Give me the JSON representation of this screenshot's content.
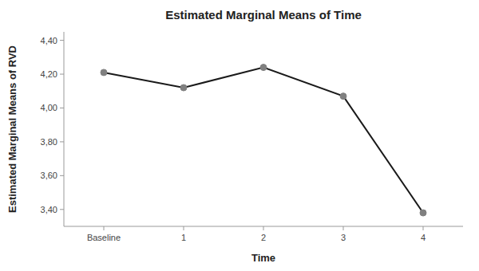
{
  "chart_data": {
    "type": "line",
    "title": "Estimated Marginal Means of Time",
    "xlabel": "Time",
    "ylabel": "Estimated Marginal Means of RVD",
    "categories": [
      "Baseline",
      "1",
      "2",
      "3",
      "4"
    ],
    "values": [
      4.21,
      4.12,
      4.24,
      4.07,
      3.38
    ],
    "color": "#1a1a1a",
    "marker": "circle",
    "ylim": [
      3.3,
      4.45
    ],
    "yticks": [
      {
        "value": 3.4,
        "label": "3,40"
      },
      {
        "value": 3.6,
        "label": "3,60"
      },
      {
        "value": 3.8,
        "label": "3,80"
      },
      {
        "value": 4.0,
        "label": "4,00"
      },
      {
        "value": 4.2,
        "label": "4,20"
      },
      {
        "value": 4.4,
        "label": "4,40"
      }
    ],
    "grid": false
  }
}
